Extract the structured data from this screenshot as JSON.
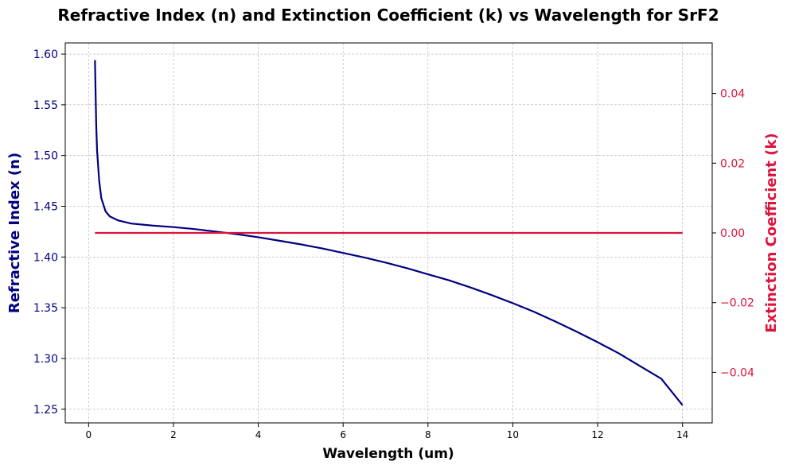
{
  "chart_data": {
    "type": "line",
    "title": "Refractive Index (n) and Extinction Coefficient (k) vs Wavelength for SrF2",
    "xlabel": "Wavelength (um)",
    "ylabel": "Refractive Index (n)",
    "y2label": "Extinction Coefficient (k)",
    "xlim": [
      -0.55,
      14.7
    ],
    "ylim": [
      1.2365,
      1.611
    ],
    "y2lim": [
      -0.0545,
      0.0545
    ],
    "xticks": [
      0,
      2,
      4,
      6,
      8,
      10,
      12,
      14
    ],
    "yticks": [
      1.25,
      1.3,
      1.35,
      1.4,
      1.45,
      1.5,
      1.55,
      1.6
    ],
    "y2ticks": [
      -0.04,
      -0.02,
      0.0,
      0.02,
      0.04
    ],
    "grid": true,
    "colors": {
      "n": "#000080",
      "k": "#dc143c"
    },
    "series": [
      {
        "axis": "left",
        "x": [
          0.15,
          0.18,
          0.2,
          0.25,
          0.3,
          0.4,
          0.5,
          0.7,
          1.0,
          1.5,
          2,
          2.5,
          3,
          3.5,
          4,
          4.5,
          5,
          5.5,
          6,
          6.5,
          7,
          7.5,
          8,
          8.5,
          9,
          9.5,
          10,
          10.5,
          11,
          11.5,
          12,
          12.5,
          13,
          13.5,
          14
        ],
        "values": [
          1.594,
          1.53,
          1.505,
          1.475,
          1.458,
          1.445,
          1.44,
          1.436,
          1.433,
          1.431,
          1.4295,
          1.4275,
          1.425,
          1.4225,
          1.4195,
          1.416,
          1.4125,
          1.4085,
          1.404,
          1.3995,
          1.3945,
          1.389,
          1.383,
          1.377,
          1.37,
          1.3625,
          1.3545,
          1.346,
          1.3365,
          1.3265,
          1.316,
          1.305,
          1.2925,
          1.28,
          1.254
        ]
      },
      {
        "axis": "right",
        "x": [
          0.15,
          14
        ],
        "values": [
          0.0,
          0.0
        ]
      }
    ]
  }
}
